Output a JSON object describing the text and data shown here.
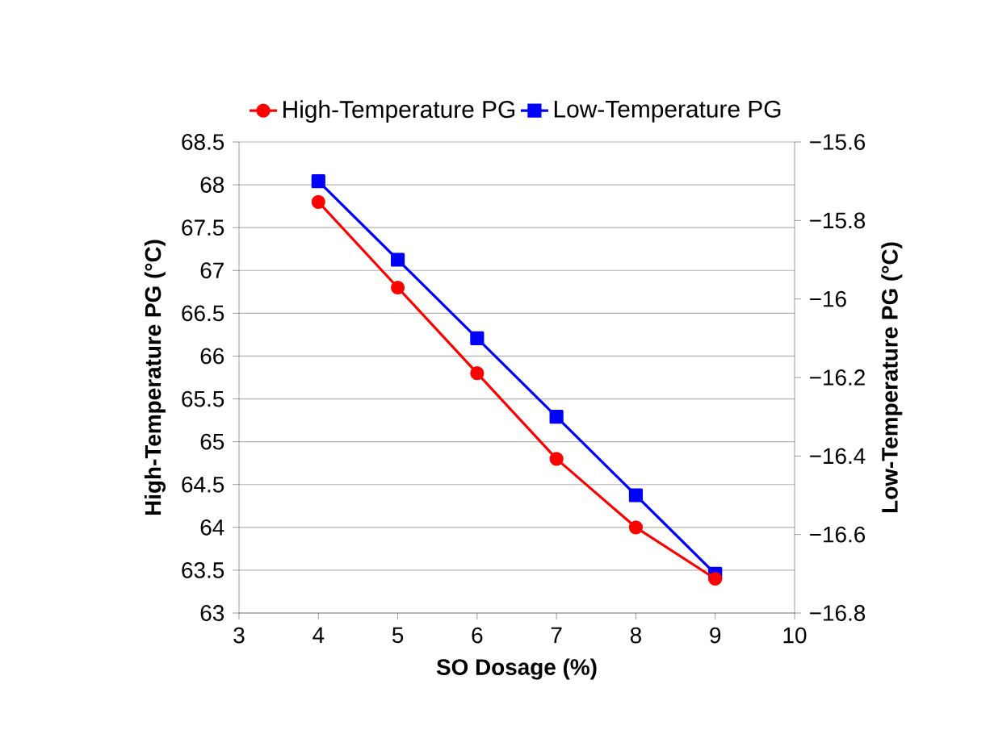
{
  "chart_data": {
    "type": "line",
    "xlabel": "SO Dosage (%)",
    "ylabel": "High-Temperature PG (°C)",
    "y2label": "Low-Temperature PG (°C)",
    "x": [
      4,
      5,
      6,
      7,
      8,
      9
    ],
    "series": [
      {
        "name": "High-Temperature PG",
        "color": "#ff0000",
        "marker": "circle",
        "values": [
          67.8,
          66.8,
          65.8,
          64.8,
          64.0,
          63.4
        ]
      },
      {
        "name": "Low-Temperature PG",
        "color": "#0000ff",
        "marker": "square",
        "axis": "y2",
        "values": [
          -15.7,
          -15.9,
          -16.1,
          -16.3,
          -16.5,
          -16.7
        ]
      }
    ],
    "xlim": [
      3,
      10
    ],
    "xticks": [
      3,
      4,
      5,
      6,
      7,
      8,
      9,
      10
    ],
    "ylim": [
      63,
      68.5
    ],
    "yticks": [
      63,
      63.5,
      64,
      64.5,
      65,
      65.5,
      66,
      66.5,
      67,
      67.5,
      68,
      68.5
    ],
    "y2lim": [
      -16.8,
      -15.6
    ],
    "y2ticks": [
      {
        "value": -16.8,
        "label": "−16.8"
      },
      {
        "value": -16.6,
        "label": "−16.6"
      },
      {
        "value": -16.4,
        "label": "−16.4"
      },
      {
        "value": -16.2,
        "label": "−16.2"
      },
      {
        "value": -16,
        "label": "−16"
      },
      {
        "value": -15.8,
        "label": "−15.8"
      },
      {
        "value": -15.6,
        "label": "−15.6"
      }
    ],
    "grid": "y",
    "legend": "top",
    "line_style": "solid"
  }
}
